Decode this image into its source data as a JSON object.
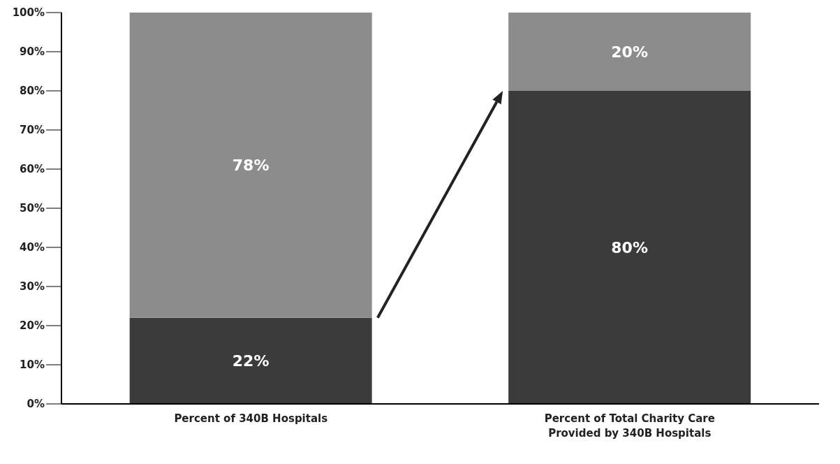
{
  "chart_data": {
    "type": "bar",
    "stacked": true,
    "categories": [
      "Percent of 340B Hospitals",
      "Percent of Total Charity Care Provided by 340B Hospitals"
    ],
    "series": [
      {
        "color": "#3b3b3b",
        "values": [
          22,
          80
        ],
        "value_labels": [
          "22%",
          "80%"
        ]
      },
      {
        "color": "#8c8c8c",
        "values": [
          78,
          20
        ],
        "value_labels": [
          "78%",
          "20%"
        ]
      }
    ],
    "ylim": [
      0,
      100
    ],
    "yticks": [
      {
        "value": 0,
        "label": "0%"
      },
      {
        "value": 10,
        "label": "10%"
      },
      {
        "value": 20,
        "label": "20%"
      },
      {
        "value": 30,
        "label": "30%"
      },
      {
        "value": 40,
        "label": "40%"
      },
      {
        "value": 50,
        "label": "50%"
      },
      {
        "value": 60,
        "label": "60%"
      },
      {
        "value": 70,
        "label": "70%"
      },
      {
        "value": 80,
        "label": "80%"
      },
      {
        "value": 90,
        "label": "90%"
      },
      {
        "value": 100,
        "label": "100%"
      }
    ],
    "grid": false,
    "legend": false
  }
}
